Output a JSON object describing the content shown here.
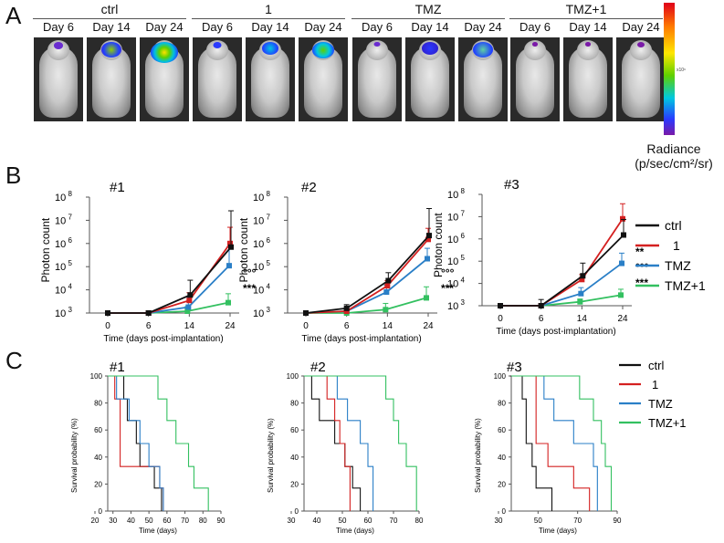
{
  "panel_a": {
    "letter": "A",
    "groups": [
      {
        "name": "ctrl",
        "days": [
          "Day 6",
          "Day 14",
          "Day 24"
        ]
      },
      {
        "name": "1",
        "days": [
          "Day 6",
          "Day 14",
          "Day 24"
        ]
      },
      {
        "name": "TMZ",
        "days": [
          "Day 6",
          "Day 14",
          "Day 24"
        ]
      },
      {
        "name": "TMZ+1",
        "days": [
          "Day 6",
          "Day 14",
          "Day 24"
        ]
      }
    ],
    "colorbar": {
      "ticks": [
        "",
        "",
        "x10⁶",
        "",
        ""
      ],
      "label_line1": "Radiance",
      "label_line2": "(p/sec/cm²/sr)"
    }
  },
  "colors": {
    "ctrl": "#111111",
    "one": "#d42020",
    "tmz": "#2a7fc7",
    "tmz1": "#33c060"
  },
  "panel_b_letter": "B",
  "panel_c_letter": "C",
  "chart_data": [
    {
      "type": "line",
      "title": "#1",
      "xlabel": "Time (days post-implantation)",
      "ylabel": "Photon count",
      "yscale": "log",
      "categories": [
        "0",
        "6",
        "14",
        "24"
      ],
      "ylim": [
        1000,
        100000000
      ],
      "series": [
        {
          "name": "ctrl",
          "values": [
            1000,
            1000,
            6000,
            700000
          ],
          "err": [
            0,
            0,
            20000,
            25000000
          ]
        },
        {
          "name": "1",
          "values": [
            1000,
            1000,
            3500,
            1000000
          ],
          "err": [
            0,
            0,
            4000,
            4000000
          ]
        },
        {
          "name": "TMZ",
          "values": [
            1000,
            1000,
            1800,
            110000
          ],
          "err": [
            0,
            0,
            3000,
            600000
          ]
        },
        {
          "name": "TMZ+1",
          "values": [
            1000,
            1000,
            1200,
            2800
          ],
          "err": [
            0,
            0,
            700,
            4000
          ]
        }
      ],
      "annotations": [
        "°°°",
        "***"
      ]
    },
    {
      "type": "line",
      "title": "#2",
      "xlabel": "Time (days post-implantation)",
      "ylabel": "Photon count",
      "yscale": "log",
      "categories": [
        "0",
        "6",
        "14",
        "24"
      ],
      "ylim": [
        1000,
        100000000
      ],
      "series": [
        {
          "name": "ctrl",
          "values": [
            1000,
            1600,
            25000,
            2200000
          ],
          "err": [
            0,
            700,
            30000,
            30000000
          ]
        },
        {
          "name": "1",
          "values": [
            1000,
            1200,
            15000,
            1500000
          ],
          "err": [
            0,
            300,
            10000,
            3000000
          ]
        },
        {
          "name": "TMZ",
          "values": [
            1000,
            1200,
            8000,
            220000
          ],
          "err": [
            0,
            300,
            8000,
            400000
          ]
        },
        {
          "name": "TMZ+1",
          "values": [
            1000,
            1000,
            1400,
            4500
          ],
          "err": [
            0,
            0,
            1200,
            9000
          ]
        }
      ],
      "annotations": [
        "°°°",
        "***"
      ]
    },
    {
      "type": "line",
      "title": "#3",
      "xlabel": "Time (days post-implantation)",
      "ylabel": "Photon count",
      "yscale": "log",
      "categories": [
        "0",
        "6",
        "14",
        "24"
      ],
      "ylim": [
        1000,
        100000000
      ],
      "series": [
        {
          "name": "ctrl",
          "values": [
            1000,
            1000,
            22000,
            1500000
          ],
          "err": [
            0,
            900,
            60000,
            6000000
          ]
        },
        {
          "name": "1",
          "values": [
            1000,
            1000,
            15000,
            8000000
          ],
          "err": [
            0,
            0,
            10000,
            30000000
          ]
        },
        {
          "name": "TMZ",
          "values": [
            1000,
            1000,
            3500,
            80000
          ],
          "err": [
            0,
            0,
            3000,
            150000
          ]
        },
        {
          "name": "TMZ+1",
          "values": [
            1000,
            1000,
            1500,
            3000
          ],
          "err": [
            0,
            0,
            500,
            2500
          ]
        }
      ],
      "annotations": [
        "**",
        "°°°",
        "***"
      ]
    },
    {
      "type": "line",
      "step": true,
      "title": "#1",
      "xlabel": "Time (days)",
      "ylabel": "Survival probability (%)",
      "xlim": [
        20,
        90
      ],
      "xticks": [
        20,
        30,
        40,
        50,
        60,
        70,
        80,
        90
      ],
      "ylim": [
        0,
        100
      ],
      "yticks": [
        0,
        20,
        40,
        60,
        80,
        100
      ],
      "series": [
        {
          "name": "ctrl",
          "x": [
            30,
            36,
            38,
            43,
            45,
            51,
            53,
            57
          ],
          "y": [
            100,
            83,
            67,
            50,
            33,
            33,
            17,
            0
          ]
        },
        {
          "name": "1",
          "x": [
            28,
            31,
            34,
            44,
            52,
            56,
            58
          ],
          "y": [
            100,
            83,
            33,
            33,
            33,
            17,
            0
          ]
        },
        {
          "name": "TMZ",
          "x": [
            30,
            32,
            39,
            45,
            50,
            56,
            58
          ],
          "y": [
            100,
            83,
            67,
            50,
            33,
            17,
            0
          ]
        },
        {
          "name": "TMZ+1",
          "x": [
            50,
            55,
            60,
            65,
            72,
            75,
            83
          ],
          "y": [
            100,
            83,
            67,
            50,
            33,
            17,
            0
          ]
        }
      ]
    },
    {
      "type": "line",
      "step": true,
      "title": "#2",
      "xlabel": "Time (days)",
      "ylabel": "Survival probability (%)",
      "xlim": [
        30,
        80
      ],
      "xticks": [
        30,
        40,
        50,
        60,
        70,
        80
      ],
      "ylim": [
        0,
        100
      ],
      "yticks": [
        0,
        20,
        40,
        60,
        80,
        100
      ],
      "series": [
        {
          "name": "ctrl",
          "x": [
            35,
            38,
            41,
            47,
            51,
            54,
            57
          ],
          "y": [
            100,
            83,
            67,
            50,
            33,
            17,
            0
          ]
        },
        {
          "name": "1",
          "x": [
            37,
            44,
            47,
            49,
            51,
            53
          ],
          "y": [
            100,
            83,
            67,
            50,
            33,
            0
          ]
        },
        {
          "name": "TMZ",
          "x": [
            42,
            48,
            52,
            57,
            60,
            62
          ],
          "y": [
            100,
            83,
            67,
            50,
            33,
            0
          ]
        },
        {
          "name": "TMZ+1",
          "x": [
            63,
            67,
            70,
            72,
            75,
            79
          ],
          "y": [
            100,
            83,
            67,
            50,
            33,
            0
          ]
        }
      ]
    },
    {
      "type": "line",
      "step": true,
      "title": "#3",
      "xlabel": "Time (days)",
      "ylabel": "Survival probability (%)",
      "xlim": [
        30,
        90
      ],
      "xticks": [
        30,
        50,
        70,
        90
      ],
      "ylim": [
        0,
        100
      ],
      "yticks": [
        0,
        20,
        40,
        60,
        80,
        100
      ],
      "series": [
        {
          "name": "ctrl",
          "x": [
            36,
            42,
            44,
            47,
            49,
            53,
            57
          ],
          "y": [
            100,
            83,
            50,
            33,
            17,
            17,
            0
          ]
        },
        {
          "name": "1",
          "x": [
            45,
            49,
            55,
            63,
            68,
            76
          ],
          "y": [
            100,
            50,
            33,
            33,
            17,
            0
          ]
        },
        {
          "name": "TMZ",
          "x": [
            41,
            53,
            58,
            68,
            78,
            80
          ],
          "y": [
            100,
            83,
            67,
            50,
            33,
            0
          ]
        },
        {
          "name": "TMZ+1",
          "x": [
            58,
            71,
            78,
            82,
            84,
            87
          ],
          "y": [
            100,
            83,
            67,
            50,
            33,
            0
          ]
        }
      ]
    }
  ]
}
